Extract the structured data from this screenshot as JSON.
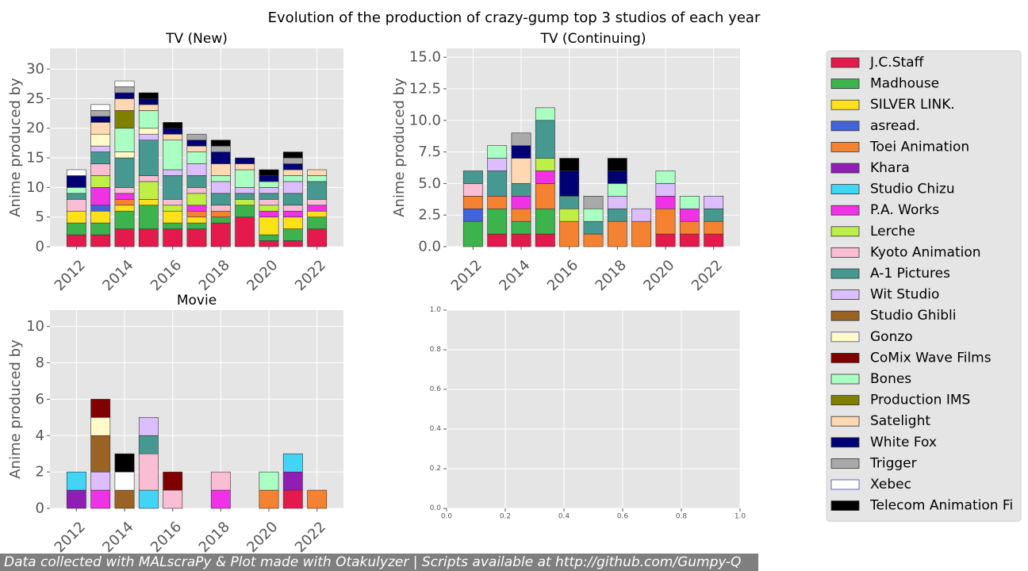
{
  "figure": {
    "suptitle": "Evolution of the production of crazy-gump top 3 studios of each year",
    "footer": "Data collected with MALscraPy & Plot made with Otakulyzer | Scripts available at http://github.com/Gumpy-Q"
  },
  "studios": [
    {
      "name": "J.C.Staff",
      "color": "#e31a4b"
    },
    {
      "name": "Madhouse",
      "color": "#3cb44b"
    },
    {
      "name": "SILVER LINK.",
      "color": "#ffe119"
    },
    {
      "name": "asread.",
      "color": "#4363d8"
    },
    {
      "name": "Toei Animation",
      "color": "#f58231"
    },
    {
      "name": "Khara",
      "color": "#911eb4"
    },
    {
      "name": "Studio Chizu",
      "color": "#42d4f4"
    },
    {
      "name": "P.A. Works",
      "color": "#f032e6"
    },
    {
      "name": "Lerche",
      "color": "#bfef45"
    },
    {
      "name": "Kyoto Animation",
      "color": "#fabed4"
    },
    {
      "name": "A-1 Pictures",
      "color": "#469990"
    },
    {
      "name": "Wit Studio",
      "color": "#dcbeff"
    },
    {
      "name": "Studio Ghibli",
      "color": "#9a6324"
    },
    {
      "name": "Gonzo",
      "color": "#fffac8"
    },
    {
      "name": "CoMix Wave Films",
      "color": "#800000"
    },
    {
      "name": "Bones",
      "color": "#aaffc3"
    },
    {
      "name": "Production IMS",
      "color": "#808000"
    },
    {
      "name": "Satelight",
      "color": "#ffd8b1"
    },
    {
      "name": "White Fox",
      "color": "#000075"
    },
    {
      "name": "Trigger",
      "color": "#a9a9a9"
    },
    {
      "name": "Xebec",
      "color": "#ffffff"
    },
    {
      "name": "Telecom Animation Fi",
      "color": "#000000"
    }
  ],
  "chart_data": [
    {
      "type": "bar",
      "stacked": true,
      "title": "TV (New)",
      "ylabel": "Anime produced by",
      "ylim": [
        0,
        33.5
      ],
      "yticks": [
        0,
        5,
        10,
        15,
        20,
        25,
        30
      ],
      "ytick_labels": [
        "0",
        "5",
        "10",
        "15",
        "20",
        "25",
        "30"
      ],
      "xlim": [
        2010.9,
        2023.1
      ],
      "xticks": [
        2012,
        2014,
        2016,
        2018,
        2020,
        2022
      ],
      "xtick_labels": [
        "2012",
        "2014",
        "2016",
        "2018",
        "2020",
        "2022"
      ],
      "x": [
        2012,
        2013,
        2014,
        2015,
        2016,
        2017,
        2018,
        2019,
        2020,
        2021,
        2022
      ],
      "series": [
        {
          "name": "J.C.Staff",
          "values": [
            2,
            2,
            3,
            3,
            3,
            3,
            4,
            5,
            1,
            1,
            3
          ]
        },
        {
          "name": "Madhouse",
          "values": [
            2,
            2,
            3,
            4,
            1,
            1,
            1,
            2,
            1,
            2,
            2
          ]
        },
        {
          "name": "SILVER LINK.",
          "values": [
            2,
            2,
            1,
            1,
            2,
            1,
            0,
            0,
            3,
            2,
            1
          ]
        },
        {
          "name": "asread.",
          "values": [
            0,
            1,
            0,
            0,
            0,
            0,
            0,
            0,
            0,
            0,
            0
          ]
        },
        {
          "name": "Toei Animation",
          "values": [
            0,
            0,
            1,
            0,
            0,
            1,
            1,
            0,
            0,
            0,
            0
          ]
        },
        {
          "name": "P.A. Works",
          "values": [
            0,
            3,
            1,
            0,
            0,
            1,
            0,
            0,
            1,
            1,
            1
          ]
        },
        {
          "name": "Lerche",
          "values": [
            0,
            2,
            0,
            3,
            1,
            2,
            0,
            1,
            1,
            0,
            0
          ]
        },
        {
          "name": "Kyoto Animation",
          "values": [
            2,
            2,
            1,
            1,
            1,
            1,
            1,
            0,
            1,
            1,
            1
          ]
        },
        {
          "name": "A-1 Pictures",
          "values": [
            1,
            2,
            5,
            6,
            4,
            2,
            2,
            1,
            1,
            2,
            3
          ]
        },
        {
          "name": "Wit Studio",
          "values": [
            0,
            1,
            0,
            1,
            1,
            2,
            2,
            1,
            1,
            2,
            0
          ]
        },
        {
          "name": "Gonzo",
          "values": [
            0,
            2,
            1,
            1,
            0,
            0,
            0,
            0,
            0,
            0,
            0
          ]
        },
        {
          "name": "Bones",
          "values": [
            1,
            0,
            4,
            3,
            5,
            2,
            1,
            3,
            1,
            1,
            1
          ]
        },
        {
          "name": "Production IMS",
          "values": [
            0,
            0,
            3,
            0,
            0,
            0,
            0,
            0,
            0,
            0,
            0
          ]
        },
        {
          "name": "Satelight",
          "values": [
            0,
            2,
            2,
            1,
            1,
            1,
            2,
            1,
            0,
            1,
            1
          ]
        },
        {
          "name": "White Fox",
          "values": [
            2,
            1,
            1,
            1,
            1,
            1,
            2,
            1,
            1,
            1,
            0
          ]
        },
        {
          "name": "Trigger",
          "values": [
            0,
            1,
            1,
            0,
            0,
            1,
            1,
            0,
            0,
            1,
            0
          ]
        },
        {
          "name": "Xebec",
          "values": [
            1,
            1,
            1,
            0,
            0,
            0,
            0,
            0,
            0,
            0,
            0
          ]
        },
        {
          "name": "Telecom Animation Fi",
          "values": [
            0,
            0,
            0,
            1,
            1,
            0,
            1,
            0,
            1,
            1,
            0
          ]
        }
      ]
    },
    {
      "type": "bar",
      "stacked": true,
      "title": "TV (Continuing)",
      "ylabel": "Anime produced by",
      "ylim": [
        0,
        15.7
      ],
      "yticks": [
        0,
        2.5,
        5,
        7.5,
        10,
        12.5,
        15
      ],
      "ytick_labels": [
        "0.0",
        "2.5",
        "5.0",
        "7.5",
        "10.0",
        "12.5",
        "15.0"
      ],
      "xlim": [
        2010.9,
        2023.1
      ],
      "xticks": [
        2012,
        2014,
        2016,
        2018,
        2020,
        2022
      ],
      "xtick_labels": [
        "2012",
        "2014",
        "2016",
        "2018",
        "2020",
        "2022"
      ],
      "x": [
        2012,
        2013,
        2014,
        2015,
        2016,
        2017,
        2018,
        2019,
        2020,
        2021,
        2022
      ],
      "series": [
        {
          "name": "J.C.Staff",
          "values": [
            0,
            1,
            1,
            1,
            0,
            0,
            0,
            0,
            1,
            1,
            1
          ]
        },
        {
          "name": "Madhouse",
          "values": [
            2,
            2,
            1,
            2,
            0,
            0,
            0,
            0,
            0,
            0,
            0
          ]
        },
        {
          "name": "asread.",
          "values": [
            1,
            0,
            0,
            0,
            0,
            0,
            0,
            0,
            0,
            0,
            0
          ]
        },
        {
          "name": "Toei Animation",
          "values": [
            1,
            1,
            1,
            2,
            2,
            1,
            2,
            2,
            2,
            1,
            1
          ]
        },
        {
          "name": "P.A. Works",
          "values": [
            0,
            0,
            1,
            1,
            0,
            0,
            0,
            0,
            1,
            1,
            0
          ]
        },
        {
          "name": "Lerche",
          "values": [
            0,
            0,
            0,
            1,
            1,
            0,
            0,
            0,
            0,
            0,
            0
          ]
        },
        {
          "name": "Kyoto Animation",
          "values": [
            1,
            0,
            0,
            0,
            0,
            0,
            0,
            0,
            0,
            0,
            0
          ]
        },
        {
          "name": "A-1 Pictures",
          "values": [
            1,
            2,
            1,
            3,
            1,
            1,
            1,
            0,
            0,
            0,
            1
          ]
        },
        {
          "name": "Wit Studio",
          "values": [
            0,
            1,
            0,
            0,
            0,
            0,
            1,
            1,
            1,
            0,
            1
          ]
        },
        {
          "name": "Bones",
          "values": [
            0,
            1,
            0,
            1,
            0,
            1,
            1,
            0,
            1,
            1,
            0
          ]
        },
        {
          "name": "Satelight",
          "values": [
            0,
            0,
            2,
            0,
            0,
            0,
            0,
            0,
            0,
            0,
            0
          ]
        },
        {
          "name": "White Fox",
          "values": [
            0,
            0,
            1,
            0,
            2,
            0,
            1,
            0,
            0,
            0,
            0
          ]
        },
        {
          "name": "Trigger",
          "values": [
            0,
            0,
            1,
            0,
            0,
            1,
            0,
            0,
            0,
            0,
            0
          ]
        },
        {
          "name": "Telecom Animation Fi",
          "values": [
            0,
            0,
            0,
            0,
            1,
            0,
            1,
            0,
            0,
            0,
            0
          ]
        }
      ]
    },
    {
      "type": "bar",
      "stacked": true,
      "title": "Movie",
      "ylabel": "Anime produced by",
      "ylim": [
        0,
        10.9
      ],
      "yticks": [
        0,
        2,
        4,
        6,
        8,
        10
      ],
      "ytick_labels": [
        "0",
        "2",
        "4",
        "6",
        "8",
        "10"
      ],
      "xlim": [
        2010.9,
        2023.1
      ],
      "xticks": [
        2012,
        2014,
        2016,
        2018,
        2020,
        2022
      ],
      "xtick_labels": [
        "2012",
        "2014",
        "2016",
        "2018",
        "2020",
        "2022"
      ],
      "x": [
        2012,
        2013,
        2014,
        2015,
        2016,
        2017,
        2018,
        2019,
        2020,
        2021,
        2022
      ],
      "series": [
        {
          "name": "J.C.Staff",
          "values": [
            0,
            0,
            0,
            0,
            0,
            0,
            0,
            0,
            0,
            1,
            0
          ]
        },
        {
          "name": "Toei Animation",
          "values": [
            0,
            0,
            0,
            0,
            0,
            0,
            0,
            0,
            1,
            0,
            1
          ]
        },
        {
          "name": "Khara",
          "values": [
            1,
            0,
            0,
            0,
            0,
            0,
            0,
            0,
            0,
            1,
            0
          ]
        },
        {
          "name": "Studio Chizu",
          "values": [
            1,
            0,
            0,
            1,
            0,
            0,
            0,
            0,
            0,
            1,
            0
          ]
        },
        {
          "name": "P.A. Works",
          "values": [
            0,
            1,
            0,
            0,
            0,
            0,
            1,
            0,
            0,
            0,
            0
          ]
        },
        {
          "name": "Kyoto Animation",
          "values": [
            0,
            0,
            0,
            2,
            1,
            0,
            1,
            0,
            0,
            0,
            0
          ]
        },
        {
          "name": "A-1 Pictures",
          "values": [
            0,
            0,
            0,
            1,
            0,
            0,
            0,
            0,
            0,
            0,
            0
          ]
        },
        {
          "name": "Wit Studio",
          "values": [
            0,
            1,
            0,
            1,
            0,
            0,
            0,
            0,
            0,
            0,
            0
          ]
        },
        {
          "name": "Studio Ghibli",
          "values": [
            0,
            2,
            1,
            0,
            0,
            0,
            0,
            0,
            0,
            0,
            0
          ]
        },
        {
          "name": "Gonzo",
          "values": [
            0,
            1,
            0,
            0,
            0,
            0,
            0,
            0,
            0,
            0,
            0
          ]
        },
        {
          "name": "CoMix Wave Films",
          "values": [
            0,
            1,
            0,
            0,
            1,
            0,
            0,
            0,
            0,
            0,
            0
          ]
        },
        {
          "name": "Bones",
          "values": [
            0,
            0,
            0,
            0,
            0,
            0,
            0,
            0,
            1,
            0,
            0
          ]
        },
        {
          "name": "Xebec",
          "values": [
            0,
            0,
            1,
            0,
            0,
            0,
            0,
            0,
            0,
            0,
            0
          ]
        },
        {
          "name": "Telecom Animation Fi",
          "values": [
            0,
            0,
            1,
            0,
            0,
            0,
            0,
            0,
            0,
            0,
            0
          ]
        }
      ]
    },
    {
      "type": "bar",
      "title": "",
      "empty": true,
      "xlim": [
        0,
        1
      ],
      "ylim": [
        0,
        1
      ],
      "xticks": [
        0,
        0.2,
        0.4,
        0.6,
        0.8,
        1.0
      ],
      "xtick_labels": [
        "0.0",
        "0.2",
        "0.4",
        "0.6",
        "0.8",
        "1.0"
      ],
      "yticks": [
        0,
        0.2,
        0.4,
        0.6,
        0.8,
        1.0
      ],
      "ytick_labels": [
        "0.0",
        "0.2",
        "0.4",
        "0.6",
        "0.8",
        "1.0"
      ],
      "series": []
    }
  ]
}
